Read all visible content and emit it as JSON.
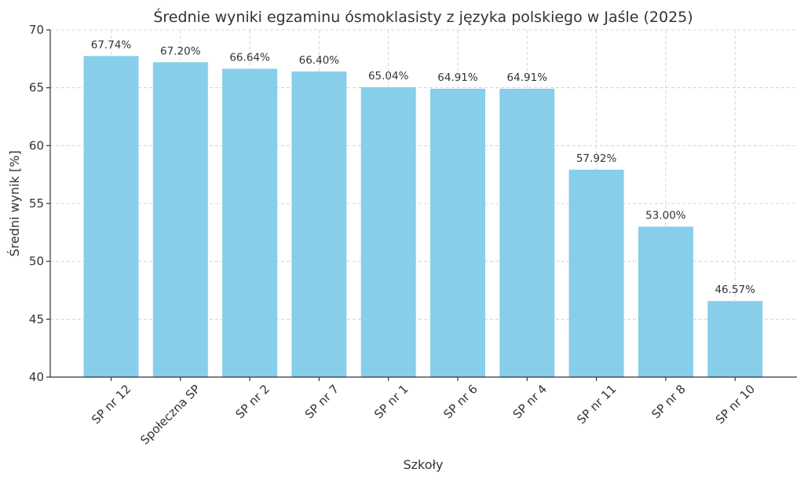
{
  "chart_data": {
    "type": "bar",
    "title": "Średnie wyniki egzaminu ósmoklasisty z języka polskiego w Jaśle (2025)",
    "xlabel": "Szkoły",
    "ylabel": "Średni wynik [%]",
    "ylim": [
      40,
      70
    ],
    "yticks": [
      40,
      45,
      50,
      55,
      60,
      65,
      70
    ],
    "grid": true,
    "bar_color": "#87CEEB",
    "categories": [
      "SP nr 12",
      "Społeczna SP",
      "SP nr 2",
      "SP nr 7",
      "SP nr 1",
      "SP nr 6",
      "SP nr 4",
      "SP nr 11",
      "SP nr 8",
      "SP nr 10"
    ],
    "values": [
      67.74,
      67.2,
      66.64,
      66.4,
      65.04,
      64.91,
      64.91,
      57.92,
      53.0,
      46.57
    ],
    "data_labels": [
      "67.74%",
      "67.20%",
      "66.64%",
      "66.40%",
      "65.04%",
      "64.91%",
      "64.91%",
      "57.92%",
      "53.00%",
      "46.57%"
    ]
  }
}
